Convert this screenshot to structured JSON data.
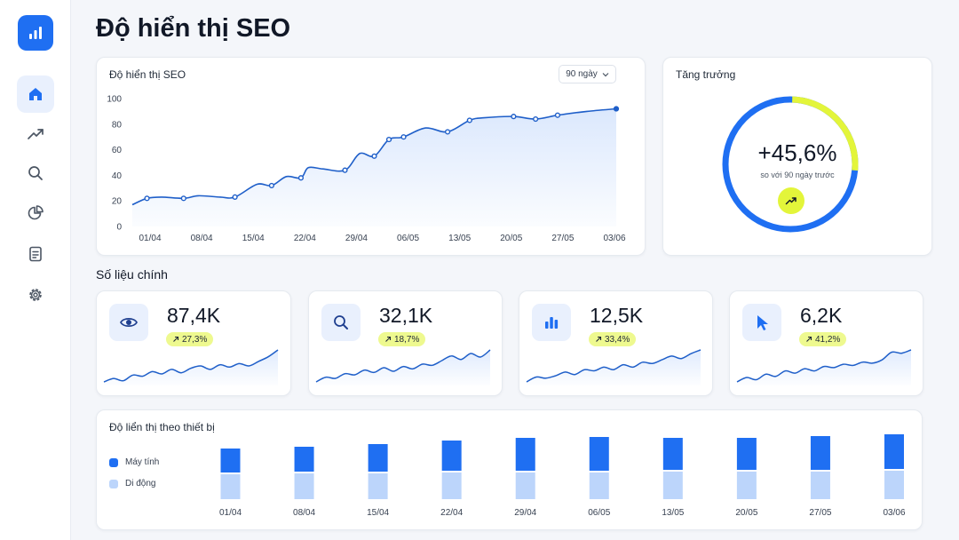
{
  "page": {
    "title": "Độ hiển thị SEO"
  },
  "sidebar": {
    "logo_icon": "bar-chart-icon",
    "items": [
      {
        "name": "home",
        "icon": "home-icon",
        "active": true
      },
      {
        "name": "trends",
        "icon": "trending-up-icon",
        "active": false
      },
      {
        "name": "search",
        "icon": "search-icon",
        "active": false
      },
      {
        "name": "reports",
        "icon": "pie-chart-icon",
        "active": false
      },
      {
        "name": "documents",
        "icon": "document-icon",
        "active": false
      },
      {
        "name": "settings",
        "icon": "gear-icon",
        "active": false
      }
    ]
  },
  "visibility_card": {
    "title": "Độ hiển thị SEO",
    "range_select": "90 ngày"
  },
  "growth_card": {
    "title": "Tăng trưởng",
    "value": "+45,6%",
    "subtitle": "so với 90 ngày trước",
    "progress": 0.456
  },
  "metrics_section": {
    "title": "Số liệu chính"
  },
  "metrics": [
    {
      "icon": "eye-icon",
      "value": "87,4K",
      "change": "27,3%",
      "spark": [
        22,
        25,
        23,
        28,
        27,
        31,
        29,
        33,
        30,
        34,
        36,
        33,
        37,
        35,
        38,
        36,
        40,
        44,
        50
      ]
    },
    {
      "icon": "search-icon",
      "value": "32,1K",
      "change": "18,7%",
      "spark": [
        20,
        24,
        23,
        27,
        26,
        30,
        28,
        32,
        29,
        33,
        31,
        35,
        34,
        38,
        42,
        39,
        44,
        41,
        47
      ]
    },
    {
      "icon": "bar-chart-icon",
      "value": "12,5K",
      "change": "33,4%",
      "spark": [
        21,
        25,
        24,
        26,
        29,
        27,
        31,
        30,
        33,
        31,
        35,
        33,
        37,
        36,
        39,
        42,
        40,
        44,
        47
      ]
    },
    {
      "icon": "cursor-icon",
      "value": "6,2K",
      "change": "41,2%",
      "spark": [
        20,
        24,
        22,
        27,
        25,
        30,
        28,
        32,
        30,
        34,
        33,
        36,
        35,
        38,
        37,
        40,
        47,
        46,
        49
      ]
    }
  ],
  "device_card": {
    "title": "Độ liển thị theo thiết bị",
    "legend": [
      {
        "label": "Máy tính",
        "color": "#1f6ff2"
      },
      {
        "label": "Di động",
        "color": "#bcd5fb"
      }
    ]
  },
  "colors": {
    "accent": "#1f6ff2",
    "accent_light": "#bcd5fb",
    "highlight": "#e3f53a",
    "badge": "#eef98f"
  },
  "chart_data": [
    {
      "type": "line",
      "title": "Độ hiển thị SEO",
      "x_ticks": [
        "01/04",
        "08/04",
        "15/04",
        "22/04",
        "29/04",
        "06/05",
        "13/05",
        "20/05",
        "27/05",
        "03/06"
      ],
      "x": [
        0,
        2,
        4,
        7,
        9,
        12,
        14,
        17,
        19,
        21,
        23,
        24,
        26,
        29,
        31,
        33,
        35,
        37,
        40,
        43,
        46,
        48,
        52,
        55,
        58,
        62,
        66
      ],
      "y": [
        17,
        22,
        23,
        22,
        24,
        23,
        23,
        33,
        32,
        39,
        38,
        46,
        45,
        44,
        57,
        55,
        68,
        70,
        77,
        74,
        83,
        85,
        86,
        84,
        87,
        90,
        92
      ],
      "markers": [
        1,
        3,
        6,
        8,
        10,
        13,
        15,
        16,
        17,
        19,
        20,
        22,
        23,
        24,
        26,
        28,
        31,
        33,
        35
      ],
      "ylim": [
        0,
        100
      ],
      "y_ticks": [
        0,
        20,
        40,
        60,
        80,
        100
      ],
      "grid": false
    },
    {
      "type": "bar",
      "title": "Độ liển thị theo thiết bị",
      "categories": [
        "01/04",
        "08/04",
        "15/04",
        "22/04",
        "29/04",
        "06/05",
        "13/05",
        "20/05",
        "27/05",
        "03/06"
      ],
      "series": [
        {
          "name": "Máy tính",
          "values": [
            27,
            28,
            31,
            34,
            37,
            38,
            36,
            36,
            38,
            39
          ]
        },
        {
          "name": "Di động",
          "values": [
            28,
            29,
            29,
            30,
            30,
            30,
            31,
            31,
            31,
            32
          ]
        }
      ],
      "stacked": true
    }
  ]
}
